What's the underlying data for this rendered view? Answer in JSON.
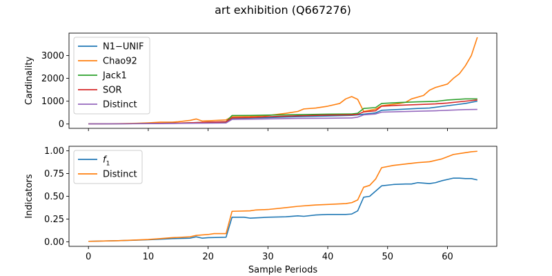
{
  "chart_data": {
    "title": "art exhibition (Q667276)",
    "xlabel": "Sample Periods",
    "xlim": [
      -3.25,
      68.25
    ],
    "xticks": [
      0,
      10,
      20,
      30,
      40,
      50,
      60
    ],
    "panels": [
      {
        "type": "line",
        "ylabel": "Cardinality",
        "ylim": [
          -190,
          3980
        ],
        "yticks": [
          0,
          1000,
          2000,
          3000
        ],
        "grid": false,
        "legend_position": "upper-left",
        "series": [
          {
            "name": "N1−UNIF",
            "color": "#1f77b4",
            "points": [
              [
                0,
                5
              ],
              [
                5,
                10
              ],
              [
                10,
                18
              ],
              [
                15,
                30
              ],
              [
                18,
                45
              ],
              [
                20,
                55
              ],
              [
                23,
                70
              ],
              [
                24,
                250
              ],
              [
                27,
                260
              ],
              [
                30,
                280
              ],
              [
                35,
                320
              ],
              [
                40,
                350
              ],
              [
                44,
                380
              ],
              [
                45,
                400
              ],
              [
                46,
                430
              ],
              [
                48,
                490
              ],
              [
                49,
                600
              ],
              [
                52,
                640
              ],
              [
                55,
                680
              ],
              [
                57,
                700
              ],
              [
                60,
                800
              ],
              [
                63,
                900
              ],
              [
                65,
                1000
              ]
            ]
          },
          {
            "name": "Chao92",
            "color": "#ff7f0e",
            "points": [
              [
                0,
                5
              ],
              [
                5,
                15
              ],
              [
                8,
                30
              ],
              [
                10,
                50
              ],
              [
                12,
                80
              ],
              [
                14,
                80
              ],
              [
                15,
                100
              ],
              [
                17,
                160
              ],
              [
                18,
                220
              ],
              [
                19,
                130
              ],
              [
                20,
                140
              ],
              [
                23,
                180
              ],
              [
                24,
                320
              ],
              [
                27,
                330
              ],
              [
                30,
                370
              ],
              [
                33,
                470
              ],
              [
                35,
                550
              ],
              [
                36,
                660
              ],
              [
                38,
                700
              ],
              [
                40,
                780
              ],
              [
                42,
                900
              ],
              [
                43,
                1100
              ],
              [
                44,
                1200
              ],
              [
                45,
                1080
              ],
              [
                46,
                550
              ],
              [
                48,
                650
              ],
              [
                49,
                800
              ],
              [
                52,
                900
              ],
              [
                53,
                950
              ],
              [
                54,
                1100
              ],
              [
                56,
                1250
              ],
              [
                57,
                1480
              ],
              [
                58,
                1600
              ],
              [
                60,
                1750
              ],
              [
                61,
                2000
              ],
              [
                62,
                2200
              ],
              [
                63,
                2550
              ],
              [
                64,
                3000
              ],
              [
                65,
                3800
              ]
            ]
          },
          {
            "name": "Jack1",
            "color": "#2ca02c",
            "points": [
              [
                0,
                5
              ],
              [
                5,
                10
              ],
              [
                10,
                20
              ],
              [
                15,
                40
              ],
              [
                18,
                60
              ],
              [
                20,
                80
              ],
              [
                23,
                100
              ],
              [
                24,
                370
              ],
              [
                27,
                375
              ],
              [
                30,
                390
              ],
              [
                35,
                410
              ],
              [
                40,
                430
              ],
              [
                44,
                440
              ],
              [
                45,
                470
              ],
              [
                46,
                680
              ],
              [
                48,
                720
              ],
              [
                49,
                900
              ],
              [
                52,
                940
              ],
              [
                55,
                970
              ],
              [
                58,
                990
              ],
              [
                60,
                1050
              ],
              [
                63,
                1100
              ],
              [
                65,
                1100
              ]
            ]
          },
          {
            "name": "SOR",
            "color": "#d62728",
            "points": [
              [
                0,
                5
              ],
              [
                5,
                10
              ],
              [
                10,
                20
              ],
              [
                15,
                40
              ],
              [
                18,
                60
              ],
              [
                20,
                80
              ],
              [
                23,
                100
              ],
              [
                24,
                270
              ],
              [
                27,
                285
              ],
              [
                30,
                320
              ],
              [
                35,
                360
              ],
              [
                40,
                390
              ],
              [
                44,
                400
              ],
              [
                45,
                420
              ],
              [
                46,
                530
              ],
              [
                48,
                580
              ],
              [
                49,
                780
              ],
              [
                52,
                820
              ],
              [
                55,
                850
              ],
              [
                58,
                880
              ],
              [
                60,
                920
              ],
              [
                63,
                1000
              ],
              [
                65,
                1050
              ]
            ]
          },
          {
            "name": "Distinct",
            "color": "#9467bd",
            "points": [
              [
                0,
                5
              ],
              [
                5,
                8
              ],
              [
                10,
                15
              ],
              [
                15,
                25
              ],
              [
                18,
                35
              ],
              [
                20,
                40
              ],
              [
                23,
                45
              ],
              [
                24,
                200
              ],
              [
                27,
                210
              ],
              [
                30,
                225
              ],
              [
                35,
                245
              ],
              [
                40,
                255
              ],
              [
                44,
                265
              ],
              [
                45,
                300
              ],
              [
                46,
                400
              ],
              [
                48,
                440
              ],
              [
                49,
                520
              ],
              [
                52,
                540
              ],
              [
                55,
                560
              ],
              [
                58,
                580
              ],
              [
                60,
                600
              ],
              [
                63,
                630
              ],
              [
                65,
                640
              ]
            ]
          }
        ]
      },
      {
        "type": "line",
        "ylabel": "Indicators",
        "ylim": [
          -0.05,
          1.05
        ],
        "yticks": [
          0.0,
          0.25,
          0.5,
          0.75,
          1.0
        ],
        "ytick_labels": [
          "0.00",
          "0.25",
          "0.50",
          "0.75",
          "1.00"
        ],
        "grid": false,
        "legend_position": "upper-left",
        "series": [
          {
            "name": "f1",
            "color": "#1f77b4",
            "points": [
              [
                0,
                0.005
              ],
              [
                5,
                0.012
              ],
              [
                8,
                0.018
              ],
              [
                10,
                0.022
              ],
              [
                12,
                0.028
              ],
              [
                14,
                0.035
              ],
              [
                17,
                0.04
              ],
              [
                18,
                0.055
              ],
              [
                19,
                0.04
              ],
              [
                20,
                0.045
              ],
              [
                23,
                0.05
              ],
              [
                24,
                0.27
              ],
              [
                26,
                0.27
              ],
              [
                27,
                0.26
              ],
              [
                30,
                0.27
              ],
              [
                33,
                0.275
              ],
              [
                35,
                0.285
              ],
              [
                36,
                0.28
              ],
              [
                38,
                0.295
              ],
              [
                40,
                0.3
              ],
              [
                43,
                0.3
              ],
              [
                44,
                0.305
              ],
              [
                45,
                0.34
              ],
              [
                46,
                0.49
              ],
              [
                47,
                0.5
              ],
              [
                49,
                0.615
              ],
              [
                51,
                0.63
              ],
              [
                53,
                0.635
              ],
              [
                54,
                0.635
              ],
              [
                55,
                0.65
              ],
              [
                57,
                0.64
              ],
              [
                58,
                0.65
              ],
              [
                59,
                0.67
              ],
              [
                61,
                0.7
              ],
              [
                62,
                0.7
              ],
              [
                63,
                0.695
              ],
              [
                64,
                0.695
              ],
              [
                65,
                0.68
              ]
            ]
          },
          {
            "name": "Distinct",
            "color": "#ff7f0e",
            "points": [
              [
                0,
                0.005
              ],
              [
                5,
                0.012
              ],
              [
                8,
                0.02
              ],
              [
                10,
                0.025
              ],
              [
                12,
                0.035
              ],
              [
                14,
                0.045
              ],
              [
                17,
                0.055
              ],
              [
                18,
                0.07
              ],
              [
                20,
                0.08
              ],
              [
                21,
                0.09
              ],
              [
                23,
                0.09
              ],
              [
                24,
                0.335
              ],
              [
                27,
                0.34
              ],
              [
                28,
                0.35
              ],
              [
                30,
                0.355
              ],
              [
                33,
                0.375
              ],
              [
                35,
                0.39
              ],
              [
                37,
                0.4
              ],
              [
                38,
                0.405
              ],
              [
                40,
                0.41
              ],
              [
                43,
                0.42
              ],
              [
                44,
                0.43
              ],
              [
                45,
                0.46
              ],
              [
                46,
                0.6
              ],
              [
                47,
                0.62
              ],
              [
                48,
                0.69
              ],
              [
                49,
                0.815
              ],
              [
                51,
                0.84
              ],
              [
                53,
                0.855
              ],
              [
                55,
                0.87
              ],
              [
                57,
                0.88
              ],
              [
                58,
                0.895
              ],
              [
                59,
                0.91
              ],
              [
                61,
                0.96
              ],
              [
                62,
                0.97
              ],
              [
                64,
                0.99
              ],
              [
                65,
                0.995
              ]
            ]
          }
        ]
      }
    ]
  }
}
